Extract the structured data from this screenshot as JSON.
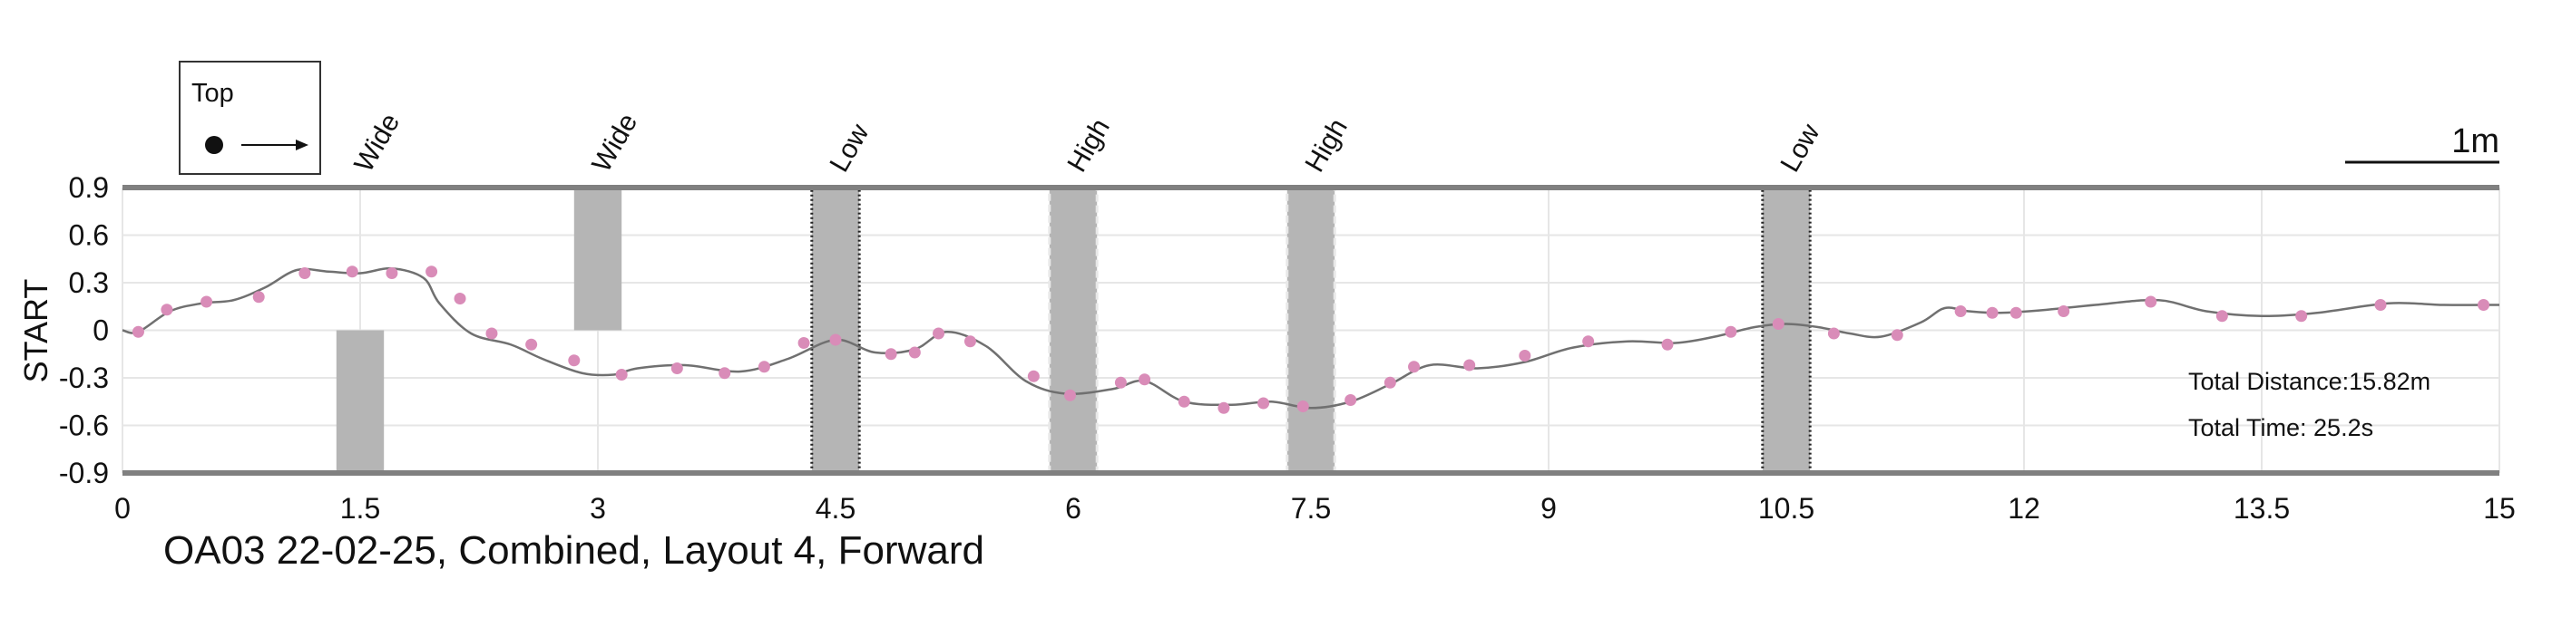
{
  "chart_data": {
    "type": "line",
    "title": "OA03 22-02-25, Combined, Layout 4, Forward",
    "xlabel": "",
    "ylabel": "START",
    "xlim": [
      0,
      15
    ],
    "ylim": [
      -0.9,
      0.9
    ],
    "grid": true,
    "x_ticks": [
      "0",
      "1.5",
      "3",
      "4.5",
      "6",
      "7.5",
      "9",
      "10.5",
      "12",
      "13.5",
      "15"
    ],
    "y_ticks": [
      "0.9",
      "0.6",
      "0.3",
      "0",
      "-0.3",
      "-0.6",
      "-0.9"
    ],
    "legend": {
      "label": "Top",
      "placement": "top-left"
    },
    "scale_label": "1m",
    "annotations": {
      "distance": "Total Distance:15.82m",
      "time": "Total Time: 25.2s"
    },
    "obstacles": [
      {
        "label": "Wide",
        "x_start": 1.35,
        "x_end": 1.65,
        "y_bottom": -0.9,
        "y_top": 0.0,
        "border": "none"
      },
      {
        "label": "Wide",
        "x_start": 2.85,
        "x_end": 3.15,
        "y_bottom": 0.0,
        "y_top": 0.9,
        "border": "none"
      },
      {
        "label": "Low",
        "x_start": 4.35,
        "x_end": 4.65,
        "y_bottom": -0.9,
        "y_top": 0.9,
        "border": "dotted-dark"
      },
      {
        "label": "High",
        "x_start": 5.85,
        "x_end": 6.15,
        "y_bottom": -0.9,
        "y_top": 0.9,
        "border": "dashed-light"
      },
      {
        "label": "High",
        "x_start": 7.35,
        "x_end": 7.65,
        "y_bottom": -0.9,
        "y_top": 0.9,
        "border": "dashed-light"
      },
      {
        "label": "Low",
        "x_start": 10.35,
        "x_end": 10.65,
        "y_bottom": -0.9,
        "y_top": 0.9,
        "border": "dotted-dark"
      }
    ],
    "series": [
      {
        "name": "path",
        "x": [
          0.0,
          0.1,
          0.3,
          0.5,
          0.7,
          0.9,
          1.1,
          1.3,
          1.5,
          1.7,
          1.9,
          2.0,
          2.2,
          2.45,
          2.65,
          2.9,
          3.1,
          3.25,
          3.55,
          3.9,
          4.2,
          4.5,
          4.75,
          5.0,
          5.2,
          5.45,
          5.7,
          5.95,
          6.25,
          6.45,
          6.7,
          7.0,
          7.25,
          7.5,
          7.75,
          8.0,
          8.25,
          8.55,
          8.85,
          9.15,
          9.5,
          9.8,
          10.05,
          10.3,
          10.5,
          10.7,
          10.9,
          11.1,
          11.35,
          11.5,
          11.65,
          11.85,
          12.15,
          12.45,
          12.85,
          13.15,
          13.5,
          13.85,
          14.3,
          14.65,
          15.0
        ],
        "y": [
          0.0,
          -0.01,
          0.12,
          0.17,
          0.19,
          0.27,
          0.38,
          0.37,
          0.36,
          0.39,
          0.33,
          0.17,
          -0.02,
          -0.09,
          -0.18,
          -0.27,
          -0.28,
          -0.24,
          -0.22,
          -0.26,
          -0.18,
          -0.06,
          -0.14,
          -0.12,
          -0.01,
          -0.1,
          -0.32,
          -0.4,
          -0.37,
          -0.32,
          -0.45,
          -0.47,
          -0.45,
          -0.49,
          -0.45,
          -0.34,
          -0.22,
          -0.24,
          -0.2,
          -0.11,
          -0.07,
          -0.08,
          -0.04,
          0.02,
          0.04,
          0.02,
          -0.02,
          -0.04,
          0.05,
          0.14,
          0.12,
          0.11,
          0.13,
          0.16,
          0.19,
          0.12,
          0.09,
          0.11,
          0.17,
          0.16,
          0.16
        ]
      }
    ],
    "markers": {
      "x": [
        0.1,
        0.28,
        0.53,
        0.86,
        1.15,
        1.45,
        1.7,
        1.95,
        2.13,
        2.33,
        2.58,
        2.85,
        3.15,
        3.5,
        3.8,
        4.05,
        4.3,
        4.5,
        4.85,
        5.0,
        5.15,
        5.35,
        5.75,
        5.98,
        6.3,
        6.45,
        6.7,
        6.95,
        7.2,
        7.45,
        7.75,
        8.0,
        8.15,
        8.5,
        8.85,
        9.25,
        9.75,
        10.15,
        10.45,
        10.8,
        11.2,
        11.6,
        11.8,
        11.95,
        12.25,
        12.8,
        13.25,
        13.75,
        14.25,
        14.9
      ],
      "y": [
        -0.01,
        0.13,
        0.18,
        0.21,
        0.36,
        0.37,
        0.36,
        0.37,
        0.2,
        -0.02,
        -0.09,
        -0.19,
        -0.28,
        -0.24,
        -0.27,
        -0.23,
        -0.08,
        -0.06,
        -0.15,
        -0.14,
        -0.02,
        -0.07,
        -0.29,
        -0.41,
        -0.33,
        -0.31,
        -0.45,
        -0.49,
        -0.46,
        -0.48,
        -0.44,
        -0.33,
        -0.23,
        -0.22,
        -0.16,
        -0.07,
        -0.09,
        -0.01,
        0.04,
        -0.02,
        -0.03,
        0.12,
        0.11,
        0.11,
        0.12,
        0.18,
        0.09,
        0.09,
        0.16,
        0.16
      ]
    },
    "colors": {
      "line": "#707070",
      "marker": "#d98cb8",
      "obstacle": "#b5b5b5",
      "frame": "#808080",
      "grid": "#e6e6e6"
    }
  }
}
